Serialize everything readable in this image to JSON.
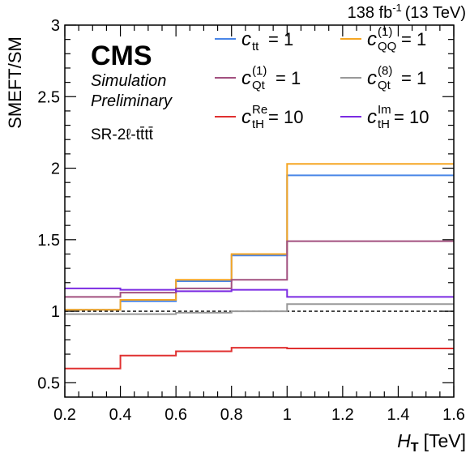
{
  "header": {
    "lumi": "138 fb",
    "lumi_exp": "-1",
    "energy": "(13 TeV)"
  },
  "labels": {
    "cms": "CMS",
    "simulation": "Simulation",
    "preliminary": "Preliminary",
    "region": "SR-2ℓ-tt̄tt̄"
  },
  "chart_data": {
    "type": "line",
    "style": "step",
    "xlabel_main": "H",
    "xlabel_sub": "T",
    "xlabel_unit": "[TeV]",
    "ylabel": "SMEFT/SM",
    "xlim": [
      0.2,
      1.6
    ],
    "ylim": [
      0.4,
      3.0
    ],
    "x_ticks": [
      "0.2",
      "0.4",
      "0.6",
      "0.8",
      "1",
      "1.2",
      "1.4",
      "1.6"
    ],
    "y_ticks": [
      "0.5",
      "1",
      "1.5",
      "2",
      "2.5",
      "3"
    ],
    "reference_line": 1.0,
    "bin_edges": [
      0.2,
      0.4,
      0.6,
      0.8,
      1.0,
      1.6
    ],
    "legend_position": "top-right",
    "series": [
      {
        "name": "c_tt = 1",
        "legend": {
          "sym": "c",
          "sub": "tt",
          "sup": "",
          "val": " = 1"
        },
        "color": "#4a86e8",
        "values": [
          1.01,
          1.07,
          1.21,
          1.39,
          1.95
        ]
      },
      {
        "name": "c_QQ^(1) = 1",
        "legend": {
          "sym": "c",
          "sub": "QQ",
          "sup": "(1)",
          "val": " = 1"
        },
        "color": "#f5a623",
        "values": [
          1.01,
          1.08,
          1.22,
          1.4,
          2.03
        ]
      },
      {
        "name": "c_Qt^(1) = 1",
        "legend": {
          "sym": "c",
          "sub": "Qt",
          "sup": "(1)",
          "val": " = 1"
        },
        "color": "#a2507f",
        "values": [
          1.1,
          1.13,
          1.16,
          1.22,
          1.49
        ]
      },
      {
        "name": "c_Qt^(8) = 1",
        "legend": {
          "sym": "c",
          "sub": "Qt",
          "sup": "(8)",
          "val": " = 1"
        },
        "color": "#999999",
        "values": [
          0.98,
          0.98,
          0.99,
          1.0,
          1.05
        ]
      },
      {
        "name": "c_tH^Re = 10",
        "legend": {
          "sym": "c",
          "sub": "tH",
          "sup": "Re",
          "val": " = 10"
        },
        "color": "#e03030",
        "values": [
          0.6,
          0.69,
          0.72,
          0.745,
          0.74
        ]
      },
      {
        "name": "c_tH^Im = 10",
        "legend": {
          "sym": "c",
          "sub": "tH",
          "sup": "Im",
          "val": " = 10"
        },
        "color": "#7b2be2",
        "values": [
          1.16,
          1.15,
          1.14,
          1.15,
          1.1
        ]
      }
    ]
  }
}
